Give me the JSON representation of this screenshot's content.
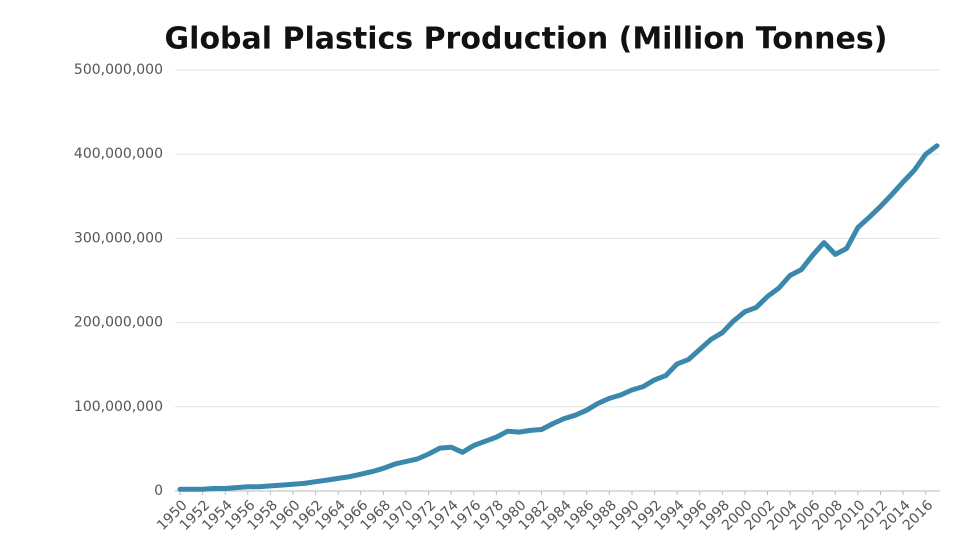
{
  "chart_data": {
    "type": "line",
    "title": "Global Plastics Production (Million Tonnes)",
    "x": [
      1950,
      1951,
      1952,
      1953,
      1954,
      1955,
      1956,
      1957,
      1958,
      1959,
      1960,
      1961,
      1962,
      1963,
      1964,
      1965,
      1966,
      1967,
      1968,
      1969,
      1970,
      1971,
      1972,
      1973,
      1974,
      1975,
      1976,
      1977,
      1978,
      1979,
      1980,
      1981,
      1982,
      1983,
      1984,
      1985,
      1986,
      1987,
      1988,
      1989,
      1990,
      1991,
      1992,
      1993,
      1994,
      1995,
      1996,
      1997,
      1998,
      1999,
      2000,
      2001,
      2002,
      2003,
      2004,
      2005,
      2006,
      2007,
      2008,
      2009,
      2010,
      2011,
      2012,
      2013,
      2014,
      2015,
      2016,
      2017
    ],
    "series": [
      {
        "color": "#3a88ab",
        "values": [
          2000000,
          2000000,
          2000000,
          3000000,
          3000000,
          4000000,
          5000000,
          5000000,
          6000000,
          7000000,
          8000000,
          9000000,
          11000000,
          13000000,
          15000000,
          17000000,
          20000000,
          23000000,
          27000000,
          32000000,
          35000000,
          38000000,
          44000000,
          51000000,
          52000000,
          46000000,
          54000000,
          59000000,
          64000000,
          71000000,
          70000000,
          72000000,
          73000000,
          80000000,
          86000000,
          90000000,
          96000000,
          104000000,
          110000000,
          114000000,
          120000000,
          124000000,
          132000000,
          137000000,
          151000000,
          156000000,
          168000000,
          180000000,
          188000000,
          202000000,
          213000000,
          218000000,
          231000000,
          241000000,
          256000000,
          263000000,
          280000000,
          295000000,
          281000000,
          288000000,
          313000000,
          325000000,
          338000000,
          352000000,
          367000000,
          381000000,
          400000000,
          410000000
        ]
      }
    ],
    "xlim": [
      1950,
      2017
    ],
    "xticks": [
      1950,
      1952,
      1954,
      1956,
      1958,
      1960,
      1962,
      1964,
      1966,
      1968,
      1970,
      1972,
      1974,
      1976,
      1978,
      1980,
      1982,
      1984,
      1986,
      1988,
      1990,
      1992,
      1994,
      1996,
      1998,
      2000,
      2002,
      2004,
      2006,
      2008,
      2010,
      2012,
      2014,
      2016
    ],
    "ylim": [
      0,
      500000000
    ],
    "yticks": [
      0,
      {
        "value": 100000000,
        "label": "100,000,000"
      },
      {
        "value": 200000000,
        "label": "200,000,000"
      },
      {
        "value": 300000000,
        "label": "300,000,000"
      },
      {
        "value": 400000000,
        "label": "400,000,000"
      },
      {
        "value": 500000000,
        "label": "500,000,000"
      }
    ],
    "grid": true
  }
}
